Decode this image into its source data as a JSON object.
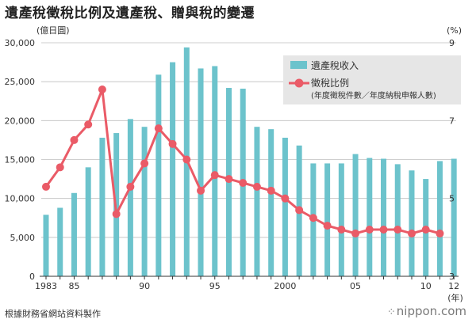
{
  "header": {
    "title": "遺產稅徵稅比例及遺產稅、贈與稅的變遷"
  },
  "footer": {
    "source": "根據財務省網站資料製作",
    "brand": "nippon.com"
  },
  "chart_data": {
    "type": "bar+line",
    "title": "遺產稅徵稅比例及遺產稅、贈與稅的變遷",
    "y_left_unit": "(億日圓)",
    "y_right_unit": "(%)",
    "x_unit": "(年)",
    "ylim_left": [
      0,
      30000
    ],
    "ylim_right": [
      3,
      9
    ],
    "left_ticks": [
      "0",
      "5,000",
      "10,000",
      "15,000",
      "20,000",
      "25,000",
      "30,000"
    ],
    "left_tick_values": [
      0,
      5000,
      10000,
      15000,
      20000,
      25000,
      30000
    ],
    "right_ticks": [
      "3",
      "5",
      "7",
      "9"
    ],
    "right_tick_values": [
      3,
      5,
      7,
      9
    ],
    "x_tick_labels": [
      {
        "year": 1983,
        "label": "1983"
      },
      {
        "year": 1985,
        "label": "85"
      },
      {
        "year": 1990,
        "label": "90"
      },
      {
        "year": 1995,
        "label": "95"
      },
      {
        "year": 2000,
        "label": "2000"
      },
      {
        "year": 2005,
        "label": "05"
      },
      {
        "year": 2010,
        "label": "10"
      },
      {
        "year": 2012,
        "label": "12"
      }
    ],
    "years": [
      1983,
      1984,
      1985,
      1986,
      1987,
      1988,
      1989,
      1990,
      1991,
      1992,
      1993,
      1994,
      1995,
      1996,
      1997,
      1998,
      1999,
      2000,
      2001,
      2002,
      2003,
      2004,
      2005,
      2006,
      2007,
      2008,
      2009,
      2010,
      2011,
      2012
    ],
    "series": [
      {
        "name": "遺產稅收入",
        "kind": "bar",
        "color": "#6cc3cc",
        "values": [
          7900,
          8800,
          10700,
          14000,
          17800,
          18400,
          20200,
          19200,
          25900,
          27500,
          29400,
          26700,
          27000,
          24200,
          24100,
          19200,
          18900,
          17800,
          16800,
          14500,
          14500,
          14500,
          15700,
          15200,
          15100,
          14400,
          13600,
          12500,
          14800,
          15100
        ]
      },
      {
        "name": "徵稅比例",
        "subtitle": "(年度徵稅件數／年度納稅申報人數)",
        "kind": "line",
        "color": "#ea5b67",
        "values": [
          5.3,
          5.8,
          6.5,
          6.9,
          7.8,
          4.6,
          5.3,
          5.9,
          6.8,
          6.4,
          6.0,
          5.2,
          5.6,
          5.5,
          5.4,
          5.3,
          5.2,
          5.0,
          4.7,
          4.5,
          4.3,
          4.2,
          4.1,
          4.2,
          4.2,
          4.2,
          4.1,
          4.2,
          4.1,
          null
        ]
      }
    ],
    "legend_position": "top-right",
    "grid": true
  }
}
